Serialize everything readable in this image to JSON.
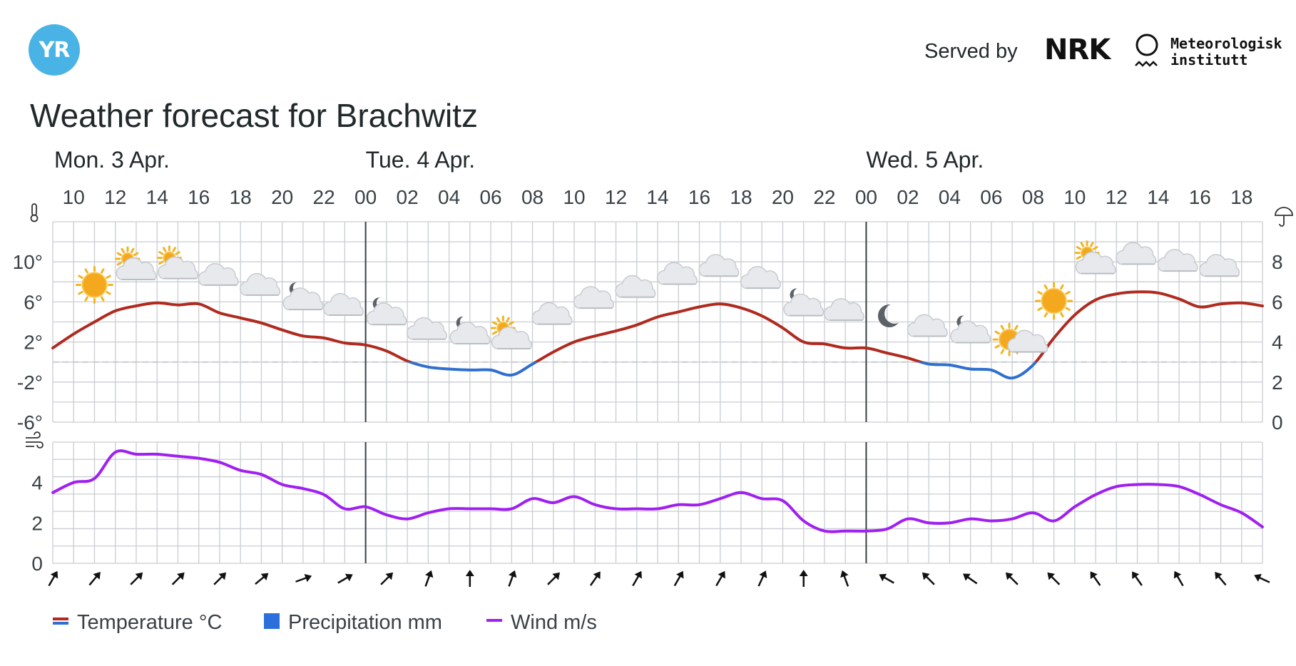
{
  "header": {
    "logo_text": "YR",
    "served_by": "Served by",
    "broadcaster": "NRK",
    "institute_line1": "Meteorologisk",
    "institute_line2": "institutt"
  },
  "title": "Weather forecast for Brachwitz",
  "colors": {
    "temperature_warm": "#b02a1f",
    "temperature_cold": "#2f6fd0",
    "precipitation": "#2a6fdb",
    "wind": "#a020f0",
    "grid": "#c9cdd2",
    "day_separator": "#3b3f45",
    "zero_line": "#c7cbd0",
    "logo": "#4ab3e6"
  },
  "chart_data": {
    "type": "line",
    "days": [
      {
        "label": "Mon. 3 Apr.",
        "hour": 9
      },
      {
        "label": "Tue. 4 Apr.",
        "hour": 24
      },
      {
        "label": "Wed. 5 Apr.",
        "hour": 48
      }
    ],
    "x_range": [
      9,
      67
    ],
    "x_tick_labels": [
      {
        "hour": 10,
        "label": "10"
      },
      {
        "hour": 12,
        "label": "12"
      },
      {
        "hour": 14,
        "label": "14"
      },
      {
        "hour": 16,
        "label": "16"
      },
      {
        "hour": 18,
        "label": "18"
      },
      {
        "hour": 20,
        "label": "20"
      },
      {
        "hour": 22,
        "label": "22"
      },
      {
        "hour": 24,
        "label": "00"
      },
      {
        "hour": 26,
        "label": "02"
      },
      {
        "hour": 28,
        "label": "04"
      },
      {
        "hour": 30,
        "label": "06"
      },
      {
        "hour": 32,
        "label": "08"
      },
      {
        "hour": 34,
        "label": "10"
      },
      {
        "hour": 36,
        "label": "12"
      },
      {
        "hour": 38,
        "label": "14"
      },
      {
        "hour": 40,
        "label": "16"
      },
      {
        "hour": 42,
        "label": "18"
      },
      {
        "hour": 44,
        "label": "20"
      },
      {
        "hour": 46,
        "label": "22"
      },
      {
        "hour": 48,
        "label": "00"
      },
      {
        "hour": 50,
        "label": "02"
      },
      {
        "hour": 52,
        "label": "04"
      },
      {
        "hour": 54,
        "label": "06"
      },
      {
        "hour": 56,
        "label": "08"
      },
      {
        "hour": 58,
        "label": "10"
      },
      {
        "hour": 60,
        "label": "12"
      },
      {
        "hour": 62,
        "label": "14"
      },
      {
        "hour": 64,
        "label": "16"
      },
      {
        "hour": 66,
        "label": "18"
      }
    ],
    "day_boundaries": [
      24,
      48
    ],
    "temperature": {
      "name": "Temperature °C",
      "unit": "°C",
      "ylim": [
        -6,
        14
      ],
      "y_tick_labels": [
        {
          "value": 10,
          "label": "10°"
        },
        {
          "value": 6,
          "label": "6°"
        },
        {
          "value": 2,
          "label": "2°"
        },
        {
          "value": -2,
          "label": "-2°"
        },
        {
          "value": -6,
          "label": "-6°"
        }
      ],
      "x": [
        9,
        10,
        11,
        12,
        13,
        14,
        15,
        16,
        17,
        18,
        19,
        20,
        21,
        22,
        23,
        24,
        25,
        26,
        27,
        28,
        29,
        30,
        31,
        32,
        33,
        34,
        35,
        36,
        37,
        38,
        39,
        40,
        41,
        42,
        43,
        44,
        45,
        46,
        47,
        48,
        49,
        50,
        51,
        52,
        53,
        54,
        55,
        56,
        57,
        58,
        59,
        60,
        61,
        62,
        63,
        64,
        65,
        66,
        67
      ],
      "values": [
        1.4,
        2.8,
        4.0,
        5.1,
        5.6,
        5.9,
        5.7,
        5.8,
        4.9,
        4.4,
        3.9,
        3.2,
        2.6,
        2.4,
        1.9,
        1.7,
        1.1,
        0.1,
        -0.5,
        -0.7,
        -0.8,
        -0.8,
        -1.3,
        -0.2,
        1.0,
        2.0,
        2.6,
        3.1,
        3.7,
        4.5,
        5.0,
        5.5,
        5.8,
        5.4,
        4.6,
        3.4,
        2.0,
        1.8,
        1.4,
        1.4,
        0.9,
        0.4,
        -0.2,
        -0.3,
        -0.7,
        -0.8,
        -1.6,
        -0.3,
        2.4,
        4.7,
        6.2,
        6.8,
        7.0,
        6.9,
        6.3,
        5.5,
        5.8,
        5.9,
        5.6
      ]
    },
    "precipitation": {
      "name": "Precipitation mm",
      "unit": "mm",
      "ylim": [
        0,
        10
      ],
      "y_tick_labels": [
        {
          "value": 8,
          "label": "8"
        },
        {
          "value": 6,
          "label": "6"
        },
        {
          "value": 4,
          "label": "4"
        },
        {
          "value": 2,
          "label": "2"
        },
        {
          "value": 0,
          "label": "0"
        }
      ],
      "values": []
    },
    "wind": {
      "name": "Wind m/s",
      "unit": "m/s",
      "ylim": [
        0,
        6
      ],
      "y_tick_labels": [
        {
          "value": 4,
          "label": "4"
        },
        {
          "value": 2,
          "label": "2"
        },
        {
          "value": 0,
          "label": "0"
        }
      ],
      "x": [
        9,
        10,
        11,
        12,
        13,
        14,
        15,
        16,
        17,
        18,
        19,
        20,
        21,
        22,
        23,
        24,
        25,
        26,
        27,
        28,
        29,
        30,
        31,
        32,
        33,
        34,
        35,
        36,
        37,
        38,
        39,
        40,
        41,
        42,
        43,
        44,
        45,
        46,
        47,
        48,
        49,
        50,
        51,
        52,
        53,
        54,
        55,
        56,
        57,
        58,
        59,
        60,
        61,
        62,
        63,
        64,
        65,
        66,
        67
      ],
      "values": [
        3.5,
        4.0,
        4.2,
        5.5,
        5.4,
        5.4,
        5.3,
        5.2,
        5.0,
        4.6,
        4.4,
        3.9,
        3.7,
        3.4,
        2.7,
        2.8,
        2.4,
        2.2,
        2.5,
        2.7,
        2.7,
        2.7,
        2.7,
        3.2,
        3.0,
        3.3,
        2.9,
        2.7,
        2.7,
        2.7,
        2.9,
        2.9,
        3.2,
        3.5,
        3.2,
        3.1,
        2.1,
        1.6,
        1.6,
        1.6,
        1.7,
        2.2,
        2.0,
        2.0,
        2.2,
        2.1,
        2.2,
        2.5,
        2.1,
        2.8,
        3.4,
        3.8,
        3.9,
        3.9,
        3.8,
        3.4,
        2.9,
        2.5,
        1.8
      ]
    },
    "weather_symbols": [
      {
        "hour": 11,
        "symbol": "clear-sky-day"
      },
      {
        "hour": 13,
        "symbol": "partly-cloudy-day"
      },
      {
        "hour": 15,
        "symbol": "partly-cloudy-day"
      },
      {
        "hour": 17,
        "symbol": "cloudy"
      },
      {
        "hour": 19,
        "symbol": "cloudy"
      },
      {
        "hour": 21,
        "symbol": "partly-cloudy-night"
      },
      {
        "hour": 23,
        "symbol": "cloudy"
      },
      {
        "hour": 25,
        "symbol": "partly-cloudy-night"
      },
      {
        "hour": 27,
        "symbol": "cloudy"
      },
      {
        "hour": 29,
        "symbol": "partly-cloudy-night"
      },
      {
        "hour": 31,
        "symbol": "partly-cloudy-day"
      },
      {
        "hour": 33,
        "symbol": "cloudy"
      },
      {
        "hour": 35,
        "symbol": "cloudy"
      },
      {
        "hour": 37,
        "symbol": "cloudy"
      },
      {
        "hour": 39,
        "symbol": "cloudy"
      },
      {
        "hour": 41,
        "symbol": "cloudy"
      },
      {
        "hour": 43,
        "symbol": "cloudy"
      },
      {
        "hour": 45,
        "symbol": "partly-cloudy-night"
      },
      {
        "hour": 47,
        "symbol": "cloudy"
      },
      {
        "hour": 49,
        "symbol": "clear-sky-night"
      },
      {
        "hour": 51,
        "symbol": "cloudy"
      },
      {
        "hour": 53,
        "symbol": "partly-cloudy-night"
      },
      {
        "hour": 55,
        "symbol": "fair-day"
      },
      {
        "hour": 57,
        "symbol": "clear-sky-day"
      },
      {
        "hour": 59,
        "symbol": "partly-cloudy-day"
      },
      {
        "hour": 61,
        "symbol": "cloudy"
      },
      {
        "hour": 63,
        "symbol": "cloudy"
      },
      {
        "hour": 65,
        "symbol": "cloudy"
      }
    ],
    "wind_direction_arrows": [
      {
        "hour": 9,
        "angle": 210
      },
      {
        "hour": 11,
        "angle": 220
      },
      {
        "hour": 13,
        "angle": 225
      },
      {
        "hour": 15,
        "angle": 225
      },
      {
        "hour": 17,
        "angle": 225
      },
      {
        "hour": 19,
        "angle": 230
      },
      {
        "hour": 21,
        "angle": 250
      },
      {
        "hour": 23,
        "angle": 240
      },
      {
        "hour": 25,
        "angle": 225
      },
      {
        "hour": 27,
        "angle": 200
      },
      {
        "hour": 29,
        "angle": 180
      },
      {
        "hour": 31,
        "angle": 200
      },
      {
        "hour": 33,
        "angle": 225
      },
      {
        "hour": 35,
        "angle": 215
      },
      {
        "hour": 37,
        "angle": 210
      },
      {
        "hour": 39,
        "angle": 210
      },
      {
        "hour": 41,
        "angle": 210
      },
      {
        "hour": 43,
        "angle": 205
      },
      {
        "hour": 45,
        "angle": 180
      },
      {
        "hour": 47,
        "angle": 160
      },
      {
        "hour": 49,
        "angle": 120
      },
      {
        "hour": 51,
        "angle": 135
      },
      {
        "hour": 53,
        "angle": 125
      },
      {
        "hour": 55,
        "angle": 135
      },
      {
        "hour": 57,
        "angle": 135
      },
      {
        "hour": 59,
        "angle": 145
      },
      {
        "hour": 61,
        "angle": 145
      },
      {
        "hour": 63,
        "angle": 150
      },
      {
        "hour": 65,
        "angle": 140
      },
      {
        "hour": 67,
        "angle": 115
      }
    ],
    "legend": [
      {
        "key": "temperature",
        "label": "Temperature °C"
      },
      {
        "key": "precipitation",
        "label": "Precipitation mm"
      },
      {
        "key": "wind",
        "label": "Wind m/s"
      }
    ],
    "grid": true,
    "legend_position": "bottom-left"
  }
}
